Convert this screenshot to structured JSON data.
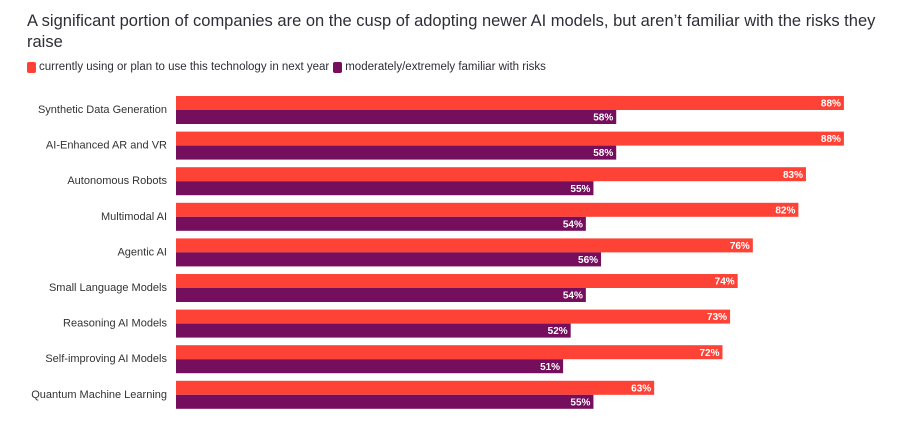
{
  "chart_data": {
    "type": "bar",
    "orientation": "horizontal",
    "title": "A significant portion of companies are on the cusp of adopting newer AI models, but aren’t familiar with the risks they raise",
    "categories": [
      "Synthetic Data Generation",
      "AI-Enhanced AR and VR",
      "Autonomous Robots",
      "Multimodal AI",
      "Agentic AI",
      "Small Language Models",
      "Reasoning AI Models",
      "Self-improving AI Models",
      "Quantum Machine Learning"
    ],
    "series": [
      {
        "name": "currently using or plan to use this technology in next year",
        "color": "#ff4236",
        "values": [
          88,
          88,
          83,
          82,
          76,
          74,
          73,
          72,
          63
        ]
      },
      {
        "name": "moderately/extremely familiar with risks",
        "color": "#750e5c",
        "values": [
          58,
          58,
          55,
          54,
          56,
          54,
          52,
          51,
          55
        ]
      }
    ],
    "value_suffix": "%",
    "xlim": [
      0,
      100
    ],
    "grid": false,
    "legend_position": "top-left",
    "xlabel": "",
    "ylabel": ""
  }
}
